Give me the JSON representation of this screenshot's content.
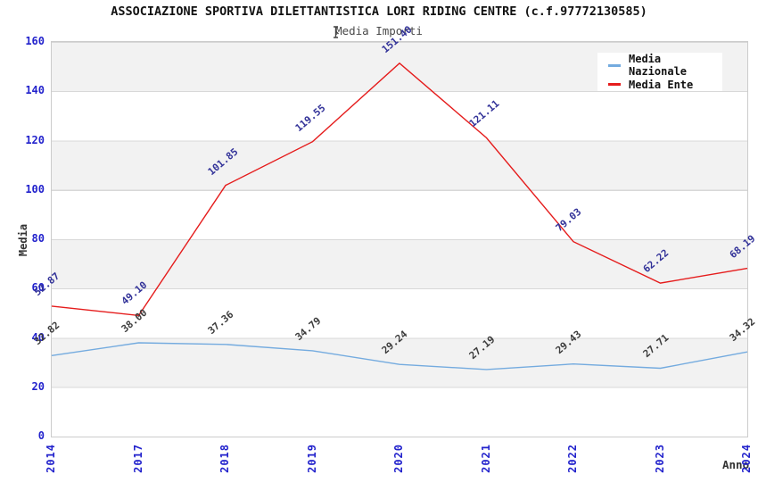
{
  "header": {
    "title": "ASSOCIAZIONE SPORTIVA DILETTANTISTICA LORI RIDING CENTRE (c.f.97772130585)",
    "subtitle": "Media Importi"
  },
  "axes": {
    "y_title": "Media",
    "x_title": "Anno",
    "y_ticks": [
      "0",
      "20",
      "40",
      "60",
      "80",
      "100",
      "120",
      "140",
      "160"
    ],
    "x_ticks": [
      "2014",
      "2017",
      "2018",
      "2019",
      "2020",
      "2021",
      "2022",
      "2023",
      "2024"
    ]
  },
  "chart_data": {
    "type": "line",
    "title": "Media Importi",
    "xlabel": "Anno",
    "ylabel": "Media",
    "ylim": [
      0,
      160
    ],
    "grid": "horizontal-bands",
    "legend_position": "top-right-inside",
    "categories": [
      "2014",
      "2017",
      "2018",
      "2019",
      "2020",
      "2021",
      "2022",
      "2023",
      "2024"
    ],
    "series": [
      {
        "name": "Media Nazionale",
        "color": "#74abdf",
        "label_color": "#3d3d3d",
        "values": [
          32.82,
          38.0,
          37.36,
          34.79,
          29.24,
          27.19,
          29.43,
          27.71,
          34.32
        ],
        "labels": [
          "32.82",
          "38.00",
          "37.36",
          "34.79",
          "29.24",
          "27.19",
          "29.43",
          "27.71",
          "34.32"
        ]
      },
      {
        "name": "Media Ente",
        "color": "#e51c1c",
        "label_color": "#333399",
        "values": [
          52.87,
          49.1,
          101.85,
          119.55,
          151.4,
          121.11,
          79.03,
          62.22,
          68.19
        ],
        "labels": [
          "52.87",
          "49.10",
          "101.85",
          "119.55",
          "151.40",
          "121.11",
          "79.03",
          "62.22",
          "68.19"
        ]
      }
    ]
  },
  "colors": {
    "tick_label": "#2222cc",
    "band_gray": "#f2f2f2",
    "gridline": "#d8d8d8",
    "plot_border": "#cccccc"
  }
}
